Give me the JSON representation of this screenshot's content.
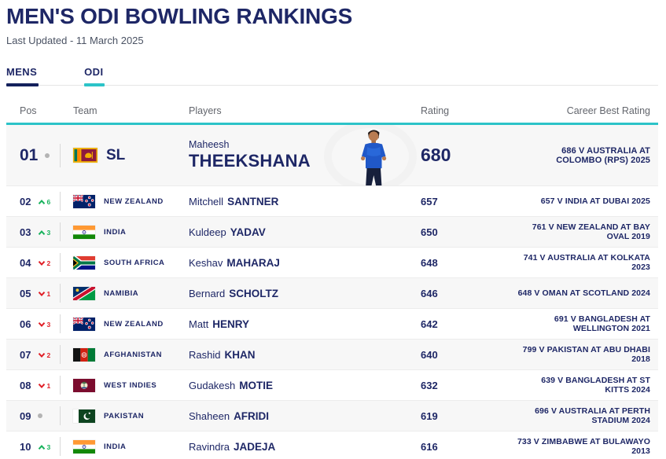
{
  "page": {
    "title": "MEN'S ODI BOWLING RANKINGS",
    "last_updated": "Last Updated - 11 March 2025"
  },
  "tabs": [
    {
      "label": "MENS",
      "underline_color": "#14215c"
    },
    {
      "label": "ODI",
      "underline_color": "#2cc3c8"
    }
  ],
  "table": {
    "headers": [
      "Pos",
      "Team",
      "Players",
      "Rating",
      "Career Best Rating"
    ],
    "rows": [
      {
        "pos": "01",
        "change": "none",
        "change_value": "",
        "flag": "sri-lanka",
        "team_name": "SL",
        "first_name": "Maheesh",
        "last_name": "THEEKSHANA",
        "rating": "680",
        "career_best": "686 V AUSTRALIA AT COLOMBO (RPS) 2025",
        "featured": true
      },
      {
        "pos": "02",
        "change": "up",
        "change_value": "6",
        "flag": "new-zealand",
        "team_name": "NEW ZEALAND",
        "first_name": "Mitchell",
        "last_name": "SANTNER",
        "rating": "657",
        "career_best": "657 V INDIA AT DUBAI 2025"
      },
      {
        "pos": "03",
        "change": "up",
        "change_value": "3",
        "flag": "india",
        "team_name": "INDIA",
        "first_name": "Kuldeep",
        "last_name": "YADAV",
        "rating": "650",
        "career_best": "761 V NEW ZEALAND AT BAY OVAL 2019"
      },
      {
        "pos": "04",
        "change": "down",
        "change_value": "2",
        "flag": "south-africa",
        "team_name": "SOUTH AFRICA",
        "first_name": "Keshav",
        "last_name": "MAHARAJ",
        "rating": "648",
        "career_best": "741 V AUSTRALIA AT KOLKATA 2023"
      },
      {
        "pos": "05",
        "change": "down",
        "change_value": "1",
        "flag": "namibia",
        "team_name": "NAMIBIA",
        "first_name": "Bernard",
        "last_name": "SCHOLTZ",
        "rating": "646",
        "career_best": "648 V OMAN AT SCOTLAND 2024"
      },
      {
        "pos": "06",
        "change": "down",
        "change_value": "3",
        "flag": "new-zealand",
        "team_name": "NEW ZEALAND",
        "first_name": "Matt",
        "last_name": "HENRY",
        "rating": "642",
        "career_best": "691 V BANGLADESH AT WELLINGTON 2021"
      },
      {
        "pos": "07",
        "change": "down",
        "change_value": "2",
        "flag": "afghanistan",
        "team_name": "AFGHANISTAN",
        "first_name": "Rashid",
        "last_name": "KHAN",
        "rating": "640",
        "career_best": "799 V PAKISTAN AT ABU DHABI 2018"
      },
      {
        "pos": "08",
        "change": "down",
        "change_value": "1",
        "flag": "west-indies",
        "team_name": "WEST INDIES",
        "first_name": "Gudakesh",
        "last_name": "MOTIE",
        "rating": "632",
        "career_best": "639 V BANGLADESH AT ST KITTS 2024"
      },
      {
        "pos": "09",
        "change": "none",
        "change_value": "",
        "flag": "pakistan",
        "team_name": "PAKISTAN",
        "first_name": "Shaheen",
        "last_name": "AFRIDI",
        "rating": "619",
        "career_best": "696 V AUSTRALIA AT PERTH STADIUM 2024"
      },
      {
        "pos": "10",
        "change": "up",
        "change_value": "3",
        "flag": "india",
        "team_name": "INDIA",
        "first_name": "Ravindra",
        "last_name": "JADEJA",
        "rating": "616",
        "career_best": "733 V ZIMBABWE AT BULAWAYO 2013"
      }
    ]
  },
  "colors": {
    "navy": "#1e2766",
    "teal_accent": "#2cc3c8",
    "rank_up_green": "#17b25c",
    "rank_down_red": "#e01e26",
    "no_change_gray": "#b4b4b4",
    "row_alt_bg": "#f7f7f7"
  },
  "icons": {
    "rank_up": "chevron-up-icon",
    "rank_down": "chevron-down-icon",
    "no_change": "dot-icon"
  }
}
